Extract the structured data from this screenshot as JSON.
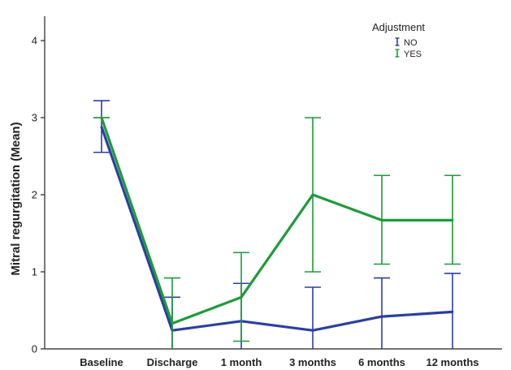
{
  "chart_data": {
    "type": "line",
    "title": "",
    "xlabel": "",
    "ylabel": "Mitral regurgitation (Mean)",
    "ylim": [
      0,
      4
    ],
    "yticks": [
      0,
      1,
      2,
      3,
      4
    ],
    "grid": false,
    "legend": {
      "title": "Adjustment",
      "placement": "top-right"
    },
    "categories": [
      "Baseline",
      "Discharge",
      "1 month",
      "3 months",
      "6 months",
      "12 months"
    ],
    "series": [
      {
        "name": "NO",
        "color": "#2b3fa0",
        "values": [
          2.88,
          0.24,
          0.36,
          0.24,
          0.42,
          0.48
        ],
        "error_low": [
          2.55,
          0.0,
          0.0,
          0.0,
          0.0,
          0.0
        ],
        "error_high": [
          3.22,
          0.67,
          0.85,
          0.8,
          0.92,
          0.98
        ]
      },
      {
        "name": "YES",
        "color": "#1f9a3a",
        "values": [
          3.0,
          0.33,
          0.67,
          2.0,
          1.67,
          1.67
        ],
        "error_low": [
          3.0,
          0.0,
          0.1,
          1.0,
          1.1,
          1.1
        ],
        "error_high": [
          3.0,
          0.92,
          1.25,
          3.0,
          2.25,
          2.25
        ]
      }
    ]
  }
}
